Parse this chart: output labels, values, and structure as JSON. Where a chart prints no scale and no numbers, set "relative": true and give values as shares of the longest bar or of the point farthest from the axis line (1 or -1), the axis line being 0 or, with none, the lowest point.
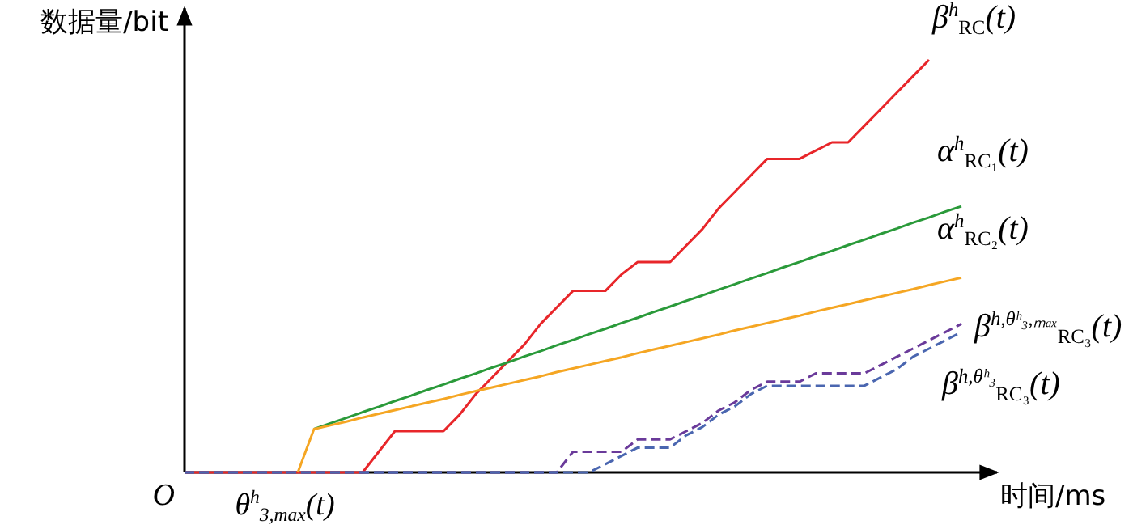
{
  "chart_data": {
    "type": "line",
    "relative": true,
    "xlabel": "时间/ms",
    "ylabel": "数据量/bit",
    "categories": [
      null,
      null,
      null,
      null,
      null,
      null,
      null,
      null,
      null,
      null,
      null,
      null,
      null,
      null,
      null,
      null,
      null,
      null,
      null,
      null,
      null,
      null,
      null,
      null,
      null,
      null,
      null,
      null,
      null,
      null,
      null,
      null,
      null,
      null,
      null,
      null,
      null,
      null,
      null,
      null,
      null,
      null,
      null,
      null,
      null,
      null,
      null,
      null,
      null
    ],
    "series": [
      {
        "name": "β$^{h}$$_{RC}$(t)",
        "color": "#e8262a",
        "line_style": "solid",
        "values": [
          0,
          0,
          0,
          0,
          0,
          0,
          0,
          0,
          0,
          0,
          0,
          0,
          0.05,
          0.1,
          0.1,
          0.1,
          0.1,
          0.14,
          0.19,
          0.23,
          0.27,
          0.31,
          0.36,
          0.4,
          0.44,
          0.44,
          0.44,
          0.48,
          0.51,
          0.51,
          0.51,
          0.55,
          0.59,
          0.64,
          0.68,
          0.72,
          0.76,
          0.76,
          0.76,
          0.78,
          0.8,
          0.8,
          0.84,
          0.88,
          0.92,
          0.96,
          1,
          null,
          null
        ]
      },
      {
        "name": "α$^{h}$$_{RC₁}$(t)",
        "color": "#2a9a3a",
        "line_style": "solid",
        "values": [
          null,
          null,
          null,
          null,
          null,
          null,
          null,
          null,
          0.105,
          0.119,
          0.132,
          0.146,
          0.159,
          0.173,
          0.186,
          0.2,
          0.213,
          0.227,
          0.24,
          0.254,
          0.267,
          0.281,
          0.294,
          0.308,
          0.321,
          0.335,
          0.348,
          0.362,
          0.375,
          0.389,
          0.402,
          0.416,
          0.429,
          0.443,
          0.456,
          0.47,
          0.483,
          0.497,
          0.51,
          0.524,
          0.537,
          0.551,
          0.564,
          0.578,
          0.591,
          0.605,
          0.618,
          0.632,
          0.645
        ]
      },
      {
        "name": "α$^{h}$$_{RC₂}$(t)",
        "color": "#f5a623",
        "line_style": "solid",
        "values": [
          null,
          null,
          null,
          null,
          null,
          null,
          null,
          0,
          0.105,
          0.114,
          0.123,
          0.133,
          0.142,
          0.151,
          0.16,
          0.169,
          0.178,
          0.188,
          0.197,
          0.206,
          0.215,
          0.224,
          0.233,
          0.243,
          0.252,
          0.261,
          0.27,
          0.279,
          0.289,
          0.298,
          0.307,
          0.316,
          0.325,
          0.334,
          0.344,
          0.353,
          0.362,
          0.371,
          0.38,
          0.39,
          0.399,
          0.408,
          0.417,
          0.426,
          0.435,
          0.444,
          0.454,
          0.463,
          0.472
        ]
      },
      {
        "name": "β$^{h,θʰ₃,ₘₐₓ}$$_{RC₃}$(t)",
        "color": "#6a3a9a",
        "line_style": "dashed",
        "values": [
          0,
          0,
          0,
          0,
          0,
          0,
          0,
          0,
          0,
          0,
          0,
          0,
          0,
          0,
          0,
          0,
          0,
          0,
          0,
          0,
          0,
          0,
          0,
          0,
          0.05,
          0.05,
          0.05,
          0.05,
          0.08,
          0.08,
          0.08,
          0.1,
          0.12,
          0.15,
          0.17,
          0.2,
          0.22,
          0.22,
          0.22,
          0.24,
          0.24,
          0.24,
          0.24,
          0.26,
          0.28,
          0.3,
          0.32,
          0.34,
          0.36
        ]
      },
      {
        "name": "β$^{h,θʰ₃}$$_{RC₃}$(t)",
        "color": "#4a66b0",
        "line_style": "dashed",
        "values": [
          0,
          0,
          0,
          0,
          0,
          0,
          0,
          0,
          0,
          0,
          0,
          0,
          0,
          0,
          0,
          0,
          0,
          0,
          0,
          0,
          0,
          0,
          0,
          0,
          0,
          0,
          0.02,
          0.04,
          0.06,
          0.06,
          0.06,
          0.09,
          0.11,
          0.14,
          0.16,
          0.19,
          0.21,
          0.21,
          0.21,
          0.21,
          0.21,
          0.21,
          0.21,
          0.23,
          0.25,
          0.28,
          0.3,
          0.32,
          0.34
        ]
      }
    ],
    "annotations": [
      "O",
      "θ$^{h}$$_{3,max}$(t)"
    ]
  }
}
